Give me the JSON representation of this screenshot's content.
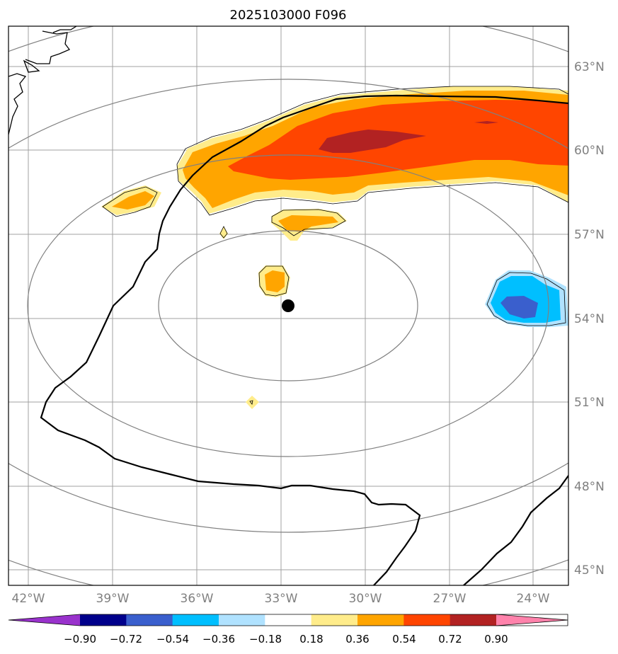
{
  "title": "2025103000 F096",
  "latitude_labels": [
    "63°N",
    "60°N",
    "57°N",
    "54°N",
    "51°N",
    "48°N",
    "45°N"
  ],
  "longitude_labels": [
    "42°W",
    "39°W",
    "36°W",
    "33°W",
    "30°W",
    "27°W",
    "24°W"
  ],
  "colorbar": {
    "ticks": [
      "−0.90",
      "−0.72",
      "−0.54",
      "−0.36",
      "−0.18",
      "0.18",
      "0.36",
      "0.54",
      "0.72",
      "0.90"
    ],
    "colors": [
      "#9932cc",
      "#00008b",
      "#3a5fcd",
      "#00bfff",
      "#b0e2ff",
      "#ffffff",
      "#ffec8b",
      "#ffa500",
      "#ff4500",
      "#b22222",
      "#ff82ab"
    ]
  },
  "colors": {
    "graticule": "#a0a0a0",
    "range_rings": "#808080",
    "coastline": "#000000"
  }
}
